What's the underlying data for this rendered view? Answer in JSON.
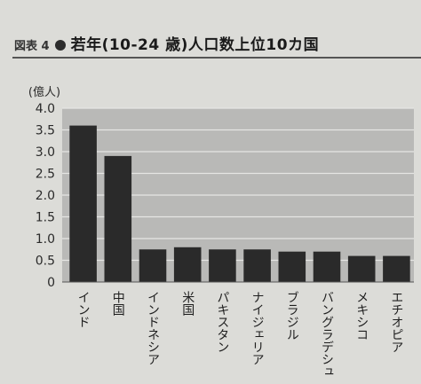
{
  "figure": {
    "label": "図表 4",
    "title": "若年(10-24 歳)人口数上位10カ国"
  },
  "chart_data": {
    "type": "bar",
    "title": "若年(10-24 歳)人口数上位10カ国",
    "ylabel": "(億人)",
    "xlabel": "",
    "categories": [
      "インド",
      "中国",
      "インドネシア",
      "米国",
      "パキスタン",
      "ナイジェリア",
      "ブラジル",
      "バングラデシュ",
      "メキシコ",
      "エチオピア"
    ],
    "values": [
      3.6,
      2.9,
      0.75,
      0.8,
      0.75,
      0.75,
      0.7,
      0.7,
      0.6,
      0.6
    ],
    "ylim": [
      0,
      4.0
    ],
    "yticks": [
      "0",
      "0.5",
      "1.0",
      "1.5",
      "2.0",
      "2.5",
      "3.0",
      "3.5",
      "4.0"
    ],
    "grid": true,
    "colors": {
      "bar": "#2a2a2a",
      "plot_background": "#b9b9b7",
      "grid": "#e6e6e4"
    }
  }
}
